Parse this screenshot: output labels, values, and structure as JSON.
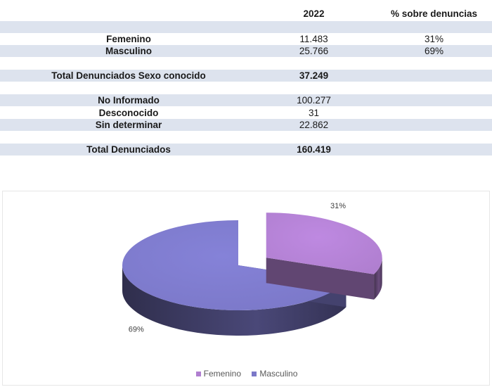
{
  "table": {
    "headers": {
      "label": "",
      "year": "2022",
      "pct": "% sobre denuncias"
    },
    "rows": [
      {
        "label": "Femenino",
        "value": "11.483",
        "pct": "31%"
      },
      {
        "label": "Masculino",
        "value": "25.766",
        "pct": "69%"
      },
      {
        "label": "Total Denunciados Sexo conocido",
        "value": "37.249",
        "pct": ""
      },
      {
        "label": "No Informado",
        "value": "100.277",
        "pct": ""
      },
      {
        "label": "Desconocido",
        "value": "31",
        "pct": ""
      },
      {
        "label": "Sin determinar",
        "value": "22.862",
        "pct": ""
      },
      {
        "label": "Total Denunciados",
        "value": "160.419",
        "pct": ""
      }
    ]
  },
  "chart_data": {
    "type": "pie",
    "title": "",
    "categories": [
      "Femenino",
      "Masculino"
    ],
    "values": [
      31,
      69
    ],
    "data_labels": [
      "31%",
      "69%"
    ],
    "colors": [
      "#b07fd0",
      "#7b78c8"
    ],
    "legend_position": "bottom",
    "style": "3d-exploded"
  }
}
